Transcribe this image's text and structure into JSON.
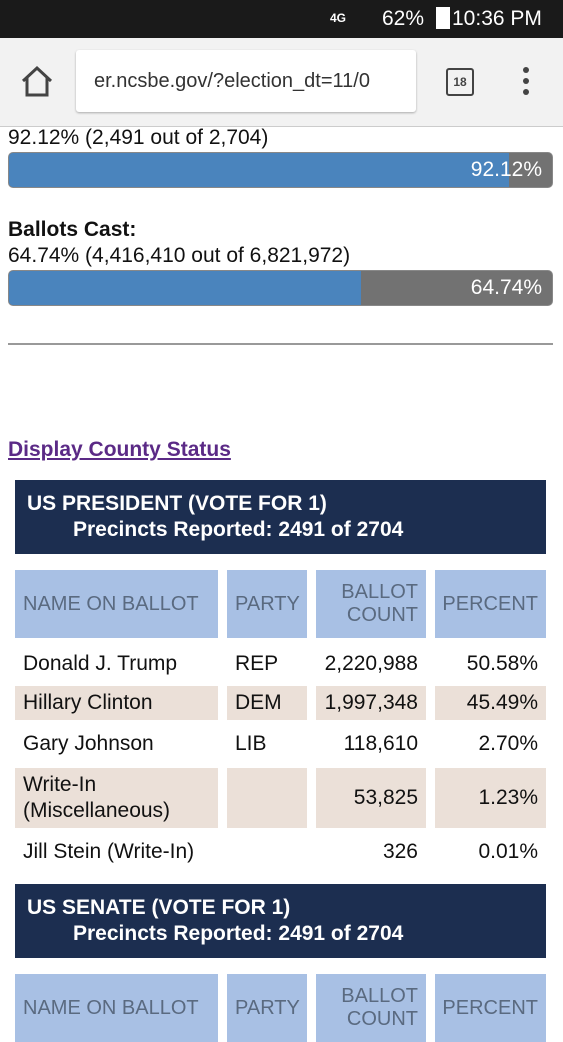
{
  "status_bar": {
    "network": "4G",
    "battery": "62%",
    "time": "10:36 PM"
  },
  "browser": {
    "url": "er.ncsbe.gov/?election_dt=11/0",
    "tab_count": "18"
  },
  "progress": [
    {
      "text": "92.12% (2,491 out of 2,704)",
      "value": 92.12,
      "label": "92.12%"
    },
    {
      "heading": "Ballots Cast:",
      "text": "64.74% (4,416,410 out of 6,821,972)",
      "value": 64.74,
      "label": "64.74%"
    }
  ],
  "link": "Display County Status",
  "contests": [
    {
      "title": "US PRESIDENT (VOTE FOR 1)",
      "subtitle": "Precincts Reported: 2491 of 2704",
      "columns": [
        "NAME ON BALLOT",
        "PARTY",
        "BALLOT COUNT",
        "PERCENT"
      ],
      "rows": [
        [
          "Donald J. Trump",
          "REP",
          "2,220,988",
          "50.58%"
        ],
        [
          "Hillary Clinton",
          "DEM",
          "1,997,348",
          "45.49%"
        ],
        [
          "Gary Johnson",
          "LIB",
          "118,610",
          "2.70%"
        ],
        [
          "Write-In (Miscellaneous)",
          null,
          "53,825",
          "1.23%"
        ],
        [
          "Jill Stein (Write-In)",
          null,
          "326",
          "0.01%"
        ]
      ]
    },
    {
      "title": "US SENATE (VOTE FOR 1)",
      "subtitle": "Precincts Reported: 2491 of 2704",
      "columns": [
        "NAME ON BALLOT",
        "PARTY",
        "BALLOT COUNT",
        "PERCENT"
      ]
    }
  ]
}
